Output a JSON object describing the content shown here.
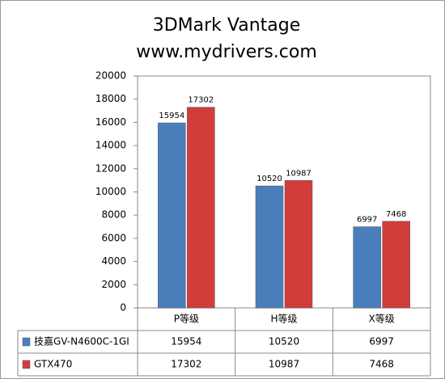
{
  "chart_data": {
    "type": "bar",
    "title": [
      "3DMark Vantage",
      "www.mydrivers.com"
    ],
    "categories": [
      "P等级",
      "H等级",
      "X等级"
    ],
    "series": [
      {
        "name": "技嘉GV-N4600C-1GI",
        "color": "#4a7ebb",
        "values": [
          15954,
          10520,
          6997
        ]
      },
      {
        "name": "GTX470",
        "color": "#d23c3a",
        "values": [
          17302,
          10987,
          7468
        ]
      }
    ],
    "ylim": [
      0,
      20000
    ],
    "yticks": [
      0,
      2000,
      4000,
      6000,
      8000,
      10000,
      12000,
      14000,
      16000,
      18000,
      20000
    ],
    "grid": false,
    "data_table": true
  }
}
